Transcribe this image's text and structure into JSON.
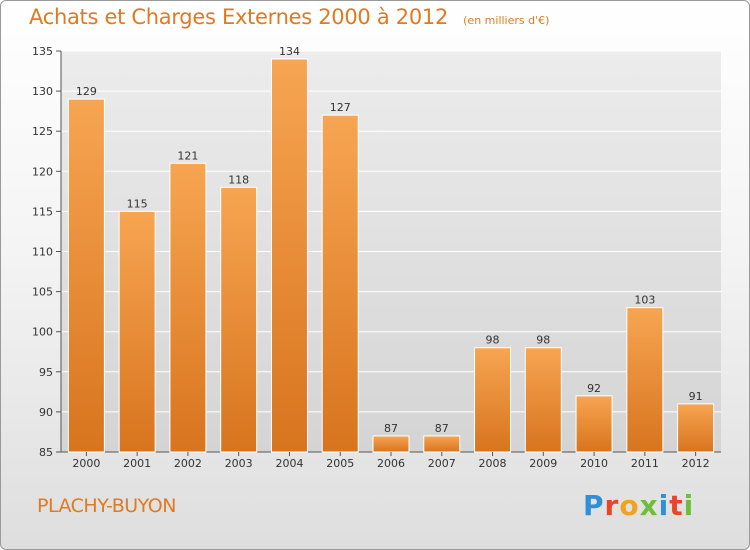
{
  "header": {
    "title": "Achats et Charges Externes 2000 à 2012",
    "unit": "(en milliers d'€)"
  },
  "footer": {
    "city": "PLACHY-BUYON",
    "brand": "Proxiti",
    "brand_colors": [
      "#2f8fd8",
      "#e8452a",
      "#f2a21c",
      "#6cbf3a",
      "#2f8fd8",
      "#e8452a",
      "#6cbf3a"
    ]
  },
  "colors": {
    "bar_top": "#f7a552",
    "bar_bottom": "#d8741e",
    "title": "#e07a22"
  },
  "chart_data": {
    "type": "bar",
    "categories": [
      "2000",
      "2001",
      "2002",
      "2003",
      "2004",
      "2005",
      "2006",
      "2007",
      "2008",
      "2009",
      "2010",
      "2011",
      "2012"
    ],
    "values": [
      129,
      115,
      121,
      118,
      134,
      127,
      87,
      87,
      98,
      98,
      92,
      103,
      91
    ],
    "ylim": [
      85,
      135
    ],
    "yticks": [
      85,
      90,
      95,
      100,
      105,
      110,
      115,
      120,
      125,
      130,
      135
    ],
    "grid": true,
    "legend": "none"
  }
}
